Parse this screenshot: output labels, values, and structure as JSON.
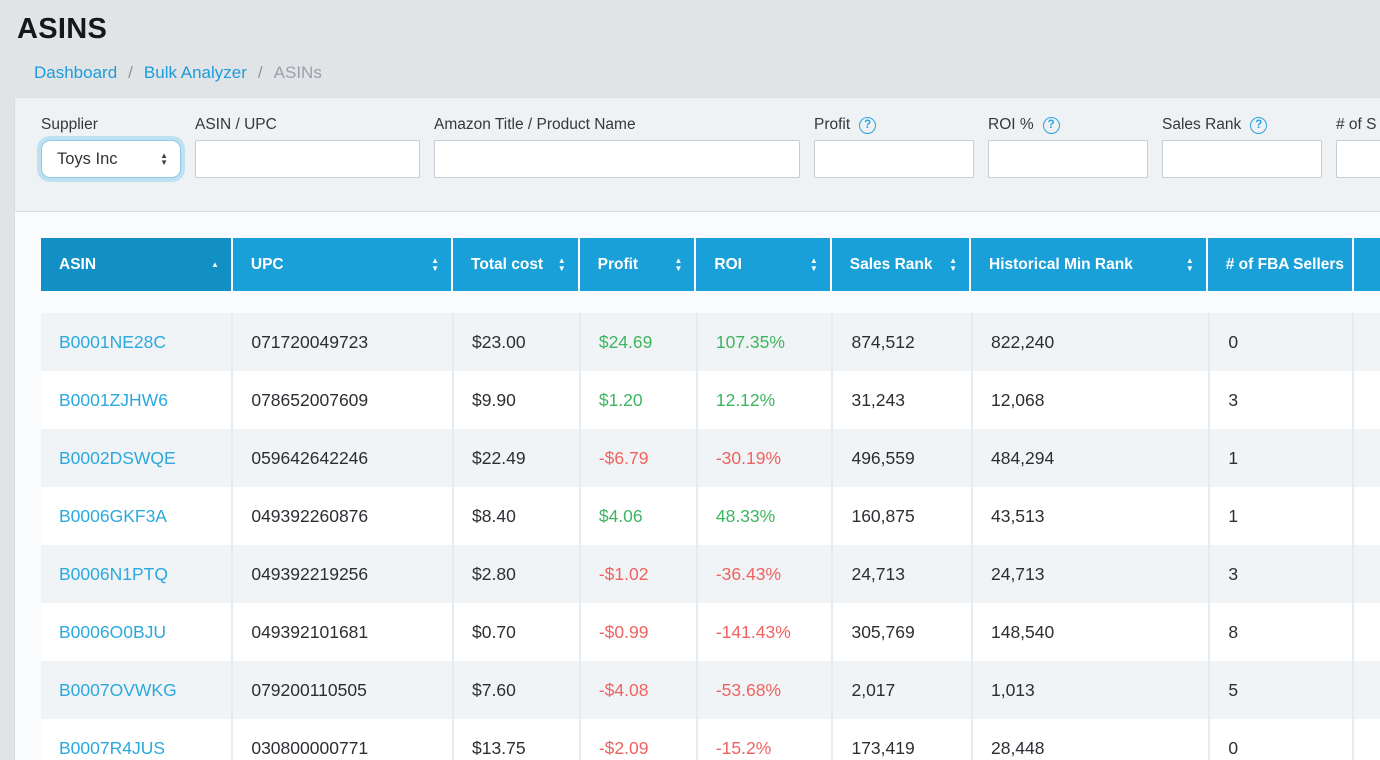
{
  "page": {
    "title": "ASINS"
  },
  "breadcrumb": {
    "items": [
      {
        "label": "Dashboard",
        "type": "link",
        "name": "breadcrumb-dashboard"
      },
      {
        "label": "Bulk Analyzer",
        "type": "link",
        "name": "breadcrumb-bulk-analyzer"
      },
      {
        "label": "ASINs",
        "type": "current",
        "name": "breadcrumb-asins"
      }
    ],
    "separator": "/"
  },
  "filters": {
    "supplier": {
      "label": "Supplier",
      "value": "Toys Inc"
    },
    "asin_upc": {
      "label": "ASIN / UPC",
      "value": ""
    },
    "amazon_title": {
      "label": "Amazon Title / Product Name",
      "value": ""
    },
    "profit": {
      "label": "Profit",
      "value": "",
      "help_icon": "?"
    },
    "roi": {
      "label": "ROI %",
      "value": "",
      "help_icon": "?"
    },
    "sales_rank": {
      "label": "Sales Rank",
      "value": "",
      "help_icon": "?"
    },
    "num_sellers": {
      "label": "# of S",
      "value": ""
    }
  },
  "table": {
    "columns": [
      {
        "label": "ASIN",
        "sort": "asc"
      },
      {
        "label": "UPC",
        "sort": "both"
      },
      {
        "label": "Total cost",
        "sort": "both"
      },
      {
        "label": "Profit",
        "sort": "both"
      },
      {
        "label": "ROI",
        "sort": "both"
      },
      {
        "label": "Sales Rank",
        "sort": "both"
      },
      {
        "label": "Historical Min Rank",
        "sort": "both"
      },
      {
        "label": "# of FBA Sellers",
        "sort": "none"
      }
    ],
    "rows": [
      [
        "B0001NE28C",
        "071720049723",
        "$23.00",
        "$24.69",
        "107.35%",
        "874,512",
        "822,240",
        "0"
      ],
      [
        "B0001ZJHW6",
        "078652007609",
        "$9.90",
        "$1.20",
        "12.12%",
        "31,243",
        "12,068",
        "3"
      ],
      [
        "B0002DSWQE",
        "059642642246",
        "$22.49",
        "-$6.79",
        "-30.19%",
        "496,559",
        "484,294",
        "1"
      ],
      [
        "B0006GKF3A",
        "049392260876",
        "$8.40",
        "$4.06",
        "48.33%",
        "160,875",
        "43,513",
        "1"
      ],
      [
        "B0006N1PTQ",
        "049392219256",
        "$2.80",
        "-$1.02",
        "-36.43%",
        "24,713",
        "24,713",
        "3"
      ],
      [
        "B0006O0BJU",
        "049392101681",
        "$0.70",
        "-$0.99",
        "-141.43%",
        "305,769",
        "148,540",
        "8"
      ],
      [
        "B0007OVWKG",
        "079200110505",
        "$7.60",
        "-$4.08",
        "-53.68%",
        "2,017",
        "1,013",
        "5"
      ],
      [
        "B0007R4JUS",
        "030800000771",
        "$13.75",
        "-$2.09",
        "-15.2%",
        "173,419",
        "28,448",
        "0"
      ]
    ]
  },
  "icons": {
    "sort_asc": "▲",
    "sort_up": "▲",
    "sort_down": "▼",
    "select_up": "▲",
    "select_down": "▼"
  },
  "colors": {
    "header_blue": "#1aa0d8",
    "header_blue_sorted": "#1290c5",
    "link_blue": "#2ba9de",
    "breadcrumb_blue": "#1d9cd9",
    "positive_green": "#3db560",
    "negative_red": "#f0625f",
    "page_background": "#e0e4e7",
    "striped_row": "#f1f4f6"
  }
}
